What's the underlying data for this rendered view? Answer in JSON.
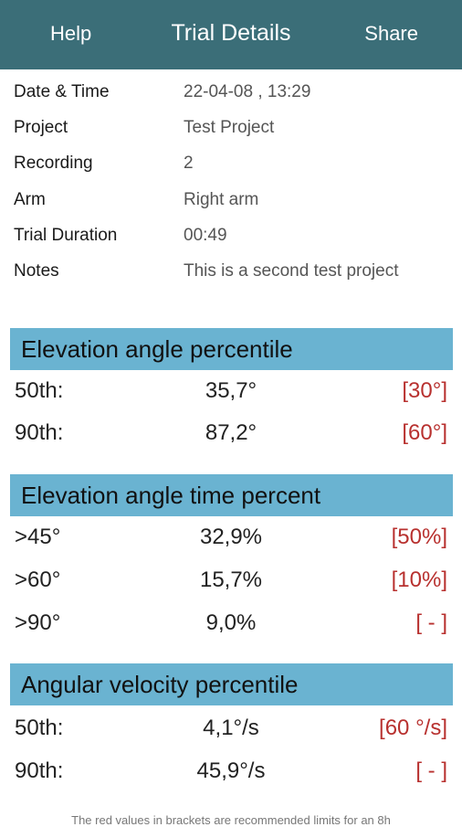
{
  "header": {
    "left_label": "Help",
    "title": "Trial Details",
    "right_label": "Share"
  },
  "info": [
    {
      "label": "Date & Time",
      "value": "22-04-08 , 13:29"
    },
    {
      "label": "Project",
      "value": "Test Project"
    },
    {
      "label": "Recording",
      "value": "2"
    },
    {
      "label": "Arm",
      "value": "Right arm"
    },
    {
      "label": "Trial Duration",
      "value": "00:49"
    },
    {
      "label": "Notes",
      "value": "This is a second test project"
    }
  ],
  "sections": [
    {
      "title": "Elevation angle percentile",
      "rows": [
        {
          "label": "50th:",
          "value": "35,7°",
          "limit": "[30°]"
        },
        {
          "label": "90th:",
          "value": "87,2°",
          "limit": "[60°]"
        }
      ]
    },
    {
      "title": "Elevation angle time percent",
      "rows": [
        {
          "label": ">45°",
          "value": "32,9%",
          "limit": "[50%]"
        },
        {
          "label": ">60°",
          "value": "15,7%",
          "limit": "[10%]"
        },
        {
          "label": ">90°",
          "value": "9,0%",
          "limit": "[ - ]"
        }
      ]
    },
    {
      "title": "Angular velocity percentile",
      "rows": [
        {
          "label": "50th:",
          "value": "4,1°/s",
          "limit": "[60 °/s]"
        },
        {
          "label": "90th:",
          "value": "45,9°/s",
          "limit": "[ - ]"
        }
      ]
    }
  ],
  "footnote": "The red values in brackets are recommended limits for an 8h",
  "colors": {
    "header_bg": "#3b6e78",
    "section_bg": "#6ab3d1",
    "limit_red": "#b8312f"
  }
}
